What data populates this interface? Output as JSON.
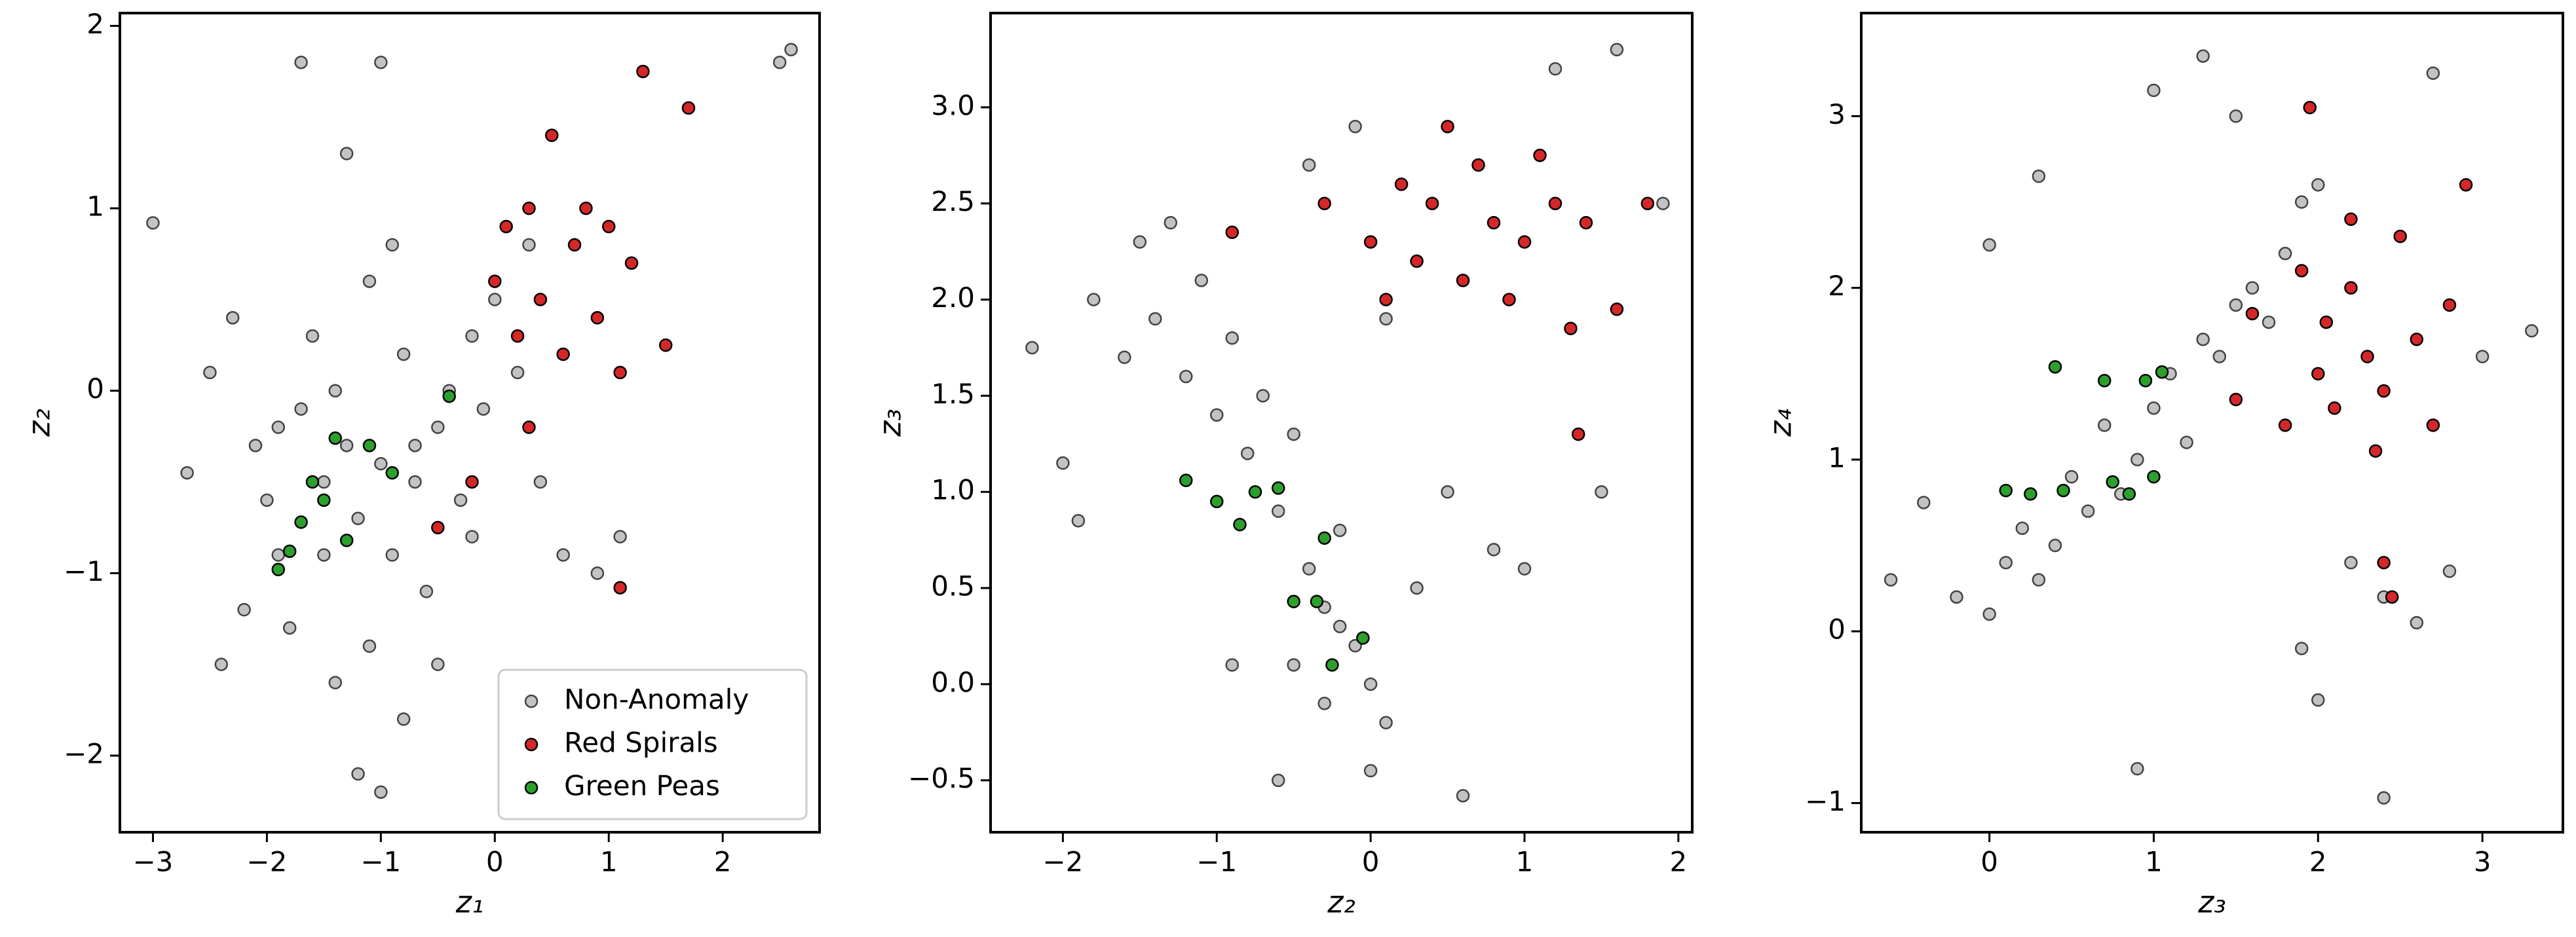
{
  "chart_data": [
    {
      "type": "scatter",
      "xlabel": "z₁",
      "ylabel": "z₂",
      "xlim": [
        -3.29,
        2.85
      ],
      "ylim": [
        -2.42,
        2.07
      ],
      "xticks": [
        {
          "value": -3,
          "label": "−3"
        },
        {
          "value": -2,
          "label": "−2"
        },
        {
          "value": -1,
          "label": "−1"
        },
        0,
        1,
        2
      ],
      "yticks": [
        {
          "value": -2,
          "label": "−2"
        },
        {
          "value": -1,
          "label": "−1"
        },
        0,
        1,
        2
      ],
      "legend": "lower right",
      "series": [
        {
          "name": "Non-Anomaly",
          "color": "#a9a9a9",
          "x": [
            -3.0,
            -2.7,
            -2.5,
            -2.3,
            -2.1,
            -2.0,
            -1.9,
            -1.8,
            -1.7,
            -1.6,
            -1.5,
            -1.5,
            -1.4,
            -1.3,
            -1.2,
            -1.1,
            -1.0,
            -1.0,
            -0.9,
            -0.8,
            -0.7,
            -0.6,
            -0.5,
            -0.4,
            -0.3,
            -0.2,
            -0.1,
            0.0,
            0.2,
            0.4,
            0.6,
            0.9,
            1.1,
            -1.7,
            -1.0,
            -1.3,
            -0.9,
            2.5,
            2.6,
            -1.2,
            -0.8,
            -2.4,
            -1.4,
            -0.5,
            0.3,
            -0.2,
            -1.1,
            -0.7,
            -1.9,
            -2.2
          ],
          "values": [
            0.92,
            -0.45,
            0.1,
            0.4,
            -0.3,
            -0.6,
            -0.2,
            -1.3,
            -0.1,
            0.3,
            -0.9,
            -0.5,
            -1.6,
            -0.3,
            -0.7,
            -1.4,
            -0.4,
            -2.2,
            -0.9,
            0.2,
            -0.5,
            -1.1,
            -0.2,
            0.0,
            -0.6,
            0.3,
            -0.1,
            0.5,
            0.1,
            -0.5,
            -0.9,
            -1.0,
            -0.8,
            1.8,
            1.8,
            1.3,
            0.8,
            1.8,
            1.87,
            -2.1,
            -1.8,
            -1.5,
            0.0,
            -1.5,
            0.8,
            -0.8,
            0.6,
            -0.3,
            -0.9,
            -1.2
          ]
        },
        {
          "name": "Red Spirals",
          "color": "#d62728",
          "x": [
            0.0,
            0.1,
            0.2,
            0.3,
            0.4,
            0.5,
            0.6,
            0.7,
            0.8,
            0.9,
            1.0,
            1.1,
            1.2,
            1.3,
            1.5,
            1.7,
            0.3,
            -0.5,
            -0.2,
            1.1
          ],
          "values": [
            0.6,
            0.9,
            0.3,
            1.0,
            0.5,
            1.4,
            0.2,
            0.8,
            1.0,
            0.4,
            0.9,
            0.1,
            0.7,
            1.75,
            0.25,
            1.55,
            -0.2,
            -0.75,
            -0.5,
            -1.08
          ]
        },
        {
          "name": "Green Peas",
          "color": "#2ca02c",
          "x": [
            -1.9,
            -1.8,
            -1.7,
            -1.5,
            -1.4,
            -1.3,
            -1.1,
            -0.9,
            -0.4,
            -1.6
          ],
          "values": [
            -0.98,
            -0.88,
            -0.72,
            -0.6,
            -0.26,
            -0.82,
            -0.3,
            -0.45,
            -0.03,
            -0.5
          ]
        }
      ]
    },
    {
      "type": "scatter",
      "xlabel": "z₂",
      "ylabel": "z₃",
      "xlim": [
        -2.47,
        2.09
      ],
      "ylim": [
        -0.77,
        3.49
      ],
      "xticks": [
        {
          "value": -2,
          "label": "−2"
        },
        {
          "value": -1,
          "label": "−1"
        },
        0,
        1,
        2
      ],
      "yticks": [
        {
          "value": -0.5,
          "label": "−0.5"
        },
        {
          "value": 0,
          "label": "0.0"
        },
        0.5,
        {
          "value": 1,
          "label": "1.0"
        },
        1.5,
        {
          "value": 2,
          "label": "2.0"
        },
        2.5,
        {
          "value": 3,
          "label": "3.0"
        }
      ],
      "series": [
        {
          "color": "#a9a9a9",
          "x": [
            -2.2,
            -2.0,
            -1.8,
            -1.6,
            -1.5,
            -1.4,
            -1.2,
            -1.1,
            -1.0,
            -0.9,
            -0.8,
            -0.7,
            -0.6,
            -0.5,
            -0.4,
            -0.3,
            -0.2,
            -0.1,
            0.0,
            0.1,
            -0.5,
            -0.3,
            -0.2,
            0.1,
            0.3,
            0.5,
            0.8,
            1.0,
            1.5,
            1.9,
            -1.9,
            -0.6,
            -0.4,
            -1.3,
            0.0,
            0.6,
            1.2,
            -0.9,
            -0.1,
            1.6
          ],
          "values": [
            1.75,
            1.15,
            2.0,
            1.7,
            2.3,
            1.9,
            1.6,
            2.1,
            1.4,
            1.8,
            1.2,
            1.5,
            0.9,
            1.3,
            0.6,
            0.4,
            0.8,
            0.2,
            0.0,
            1.9,
            0.1,
            -0.1,
            0.3,
            -0.2,
            0.5,
            1.0,
            0.7,
            0.6,
            1.0,
            2.5,
            0.85,
            -0.5,
            2.7,
            2.4,
            -0.45,
            -0.58,
            3.2,
            0.1,
            2.9,
            3.3
          ]
        },
        {
          "color": "#d62728",
          "x": [
            0.0,
            0.1,
            0.2,
            0.3,
            0.4,
            0.5,
            0.6,
            0.7,
            0.8,
            0.9,
            1.0,
            1.1,
            1.2,
            1.3,
            1.4,
            1.6,
            1.8,
            -0.3,
            -0.9,
            1.35
          ],
          "values": [
            2.3,
            2.0,
            2.6,
            2.2,
            2.5,
            2.9,
            2.1,
            2.7,
            2.4,
            2.0,
            2.3,
            2.75,
            2.5,
            1.85,
            2.4,
            1.95,
            2.5,
            2.5,
            2.35,
            1.3
          ]
        },
        {
          "color": "#2ca02c",
          "x": [
            -1.2,
            -1.0,
            -0.85,
            -0.75,
            -0.6,
            -0.3,
            -0.5,
            -0.35,
            -0.05,
            -0.25
          ],
          "values": [
            1.06,
            0.95,
            0.83,
            1.0,
            1.02,
            0.76,
            0.43,
            0.43,
            0.24,
            0.1
          ]
        }
      ]
    },
    {
      "type": "scatter",
      "xlabel": "z₃",
      "ylabel": "z₄",
      "xlim": [
        -0.78,
        3.49
      ],
      "ylim": [
        -1.17,
        3.6
      ],
      "xticks": [
        0,
        1,
        2,
        3
      ],
      "yticks": [
        {
          "value": -1,
          "label": "−1"
        },
        0,
        1,
        2,
        3
      ],
      "series": [
        {
          "color": "#a9a9a9",
          "x": [
            -0.6,
            -0.4,
            -0.2,
            0.0,
            0.1,
            0.2,
            0.3,
            0.4,
            0.5,
            0.6,
            0.7,
            0.8,
            0.9,
            1.0,
            1.1,
            1.2,
            1.3,
            1.4,
            1.5,
            1.6,
            1.7,
            1.8,
            1.9,
            2.0,
            2.2,
            2.4,
            2.6,
            2.8,
            3.0,
            3.3,
            0.0,
            0.3,
            1.0,
            1.3,
            0.9,
            2.0,
            2.4,
            1.9,
            2.7,
            1.5
          ],
          "values": [
            0.3,
            0.75,
            0.2,
            0.1,
            0.4,
            0.6,
            0.3,
            0.5,
            0.9,
            0.7,
            1.2,
            0.8,
            1.0,
            1.3,
            1.5,
            1.1,
            1.7,
            1.6,
            1.9,
            2.0,
            1.8,
            2.2,
            2.5,
            2.6,
            0.4,
            0.2,
            0.05,
            0.35,
            1.6,
            1.75,
            2.25,
            2.65,
            3.15,
            3.35,
            -0.8,
            -0.4,
            -0.97,
            -0.1,
            3.25,
            3.0
          ]
        },
        {
          "color": "#d62728",
          "x": [
            1.8,
            1.9,
            2.0,
            2.05,
            2.1,
            2.2,
            2.3,
            2.4,
            2.5,
            2.6,
            2.7,
            2.8,
            2.9,
            1.6,
            2.2,
            2.4,
            2.35,
            1.95,
            2.45,
            1.5
          ],
          "values": [
            1.2,
            2.1,
            1.5,
            1.8,
            1.3,
            2.0,
            1.6,
            1.4,
            2.3,
            1.7,
            1.2,
            1.9,
            2.6,
            1.85,
            2.4,
            0.4,
            1.05,
            3.05,
            0.2,
            1.35
          ]
        },
        {
          "color": "#2ca02c",
          "x": [
            0.1,
            0.25,
            0.4,
            0.45,
            0.7,
            0.75,
            0.85,
            0.95,
            1.05,
            1.0
          ],
          "values": [
            0.82,
            0.8,
            1.54,
            0.82,
            1.46,
            0.87,
            0.8,
            1.46,
            1.51,
            0.9
          ]
        }
      ]
    }
  ]
}
